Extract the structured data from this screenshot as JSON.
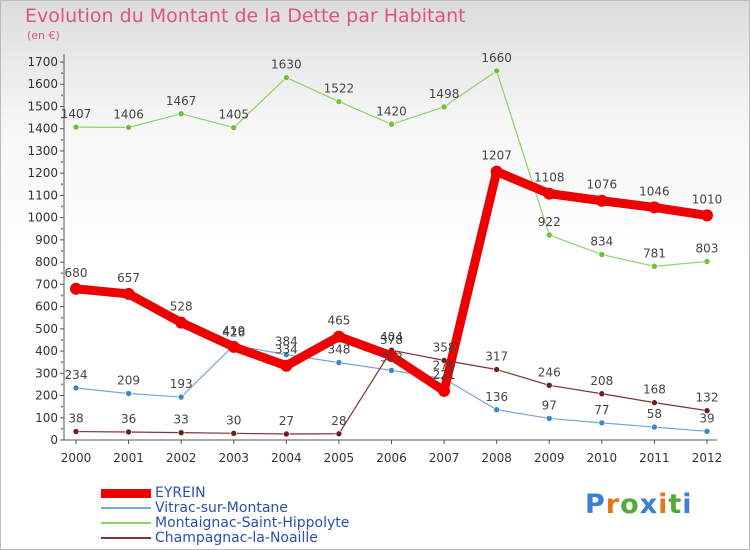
{
  "title": "Evolution du Montant de la Dette par Habitant",
  "subtitle": "(en €)",
  "logo": {
    "text": "Proxiti",
    "colors": [
      "#3a7fd5",
      "#e07a1f",
      "#56a83a",
      "#3a7fd5",
      "#e07a1f",
      "#56a83a",
      "#3a7fd5"
    ]
  },
  "chart_data": {
    "type": "line",
    "title": "Evolution du Montant de la Dette par Habitant",
    "subtitle": "(en €)",
    "x": [
      "2000",
      "2001",
      "2002",
      "2003",
      "2004",
      "2005",
      "2006",
      "2007",
      "2008",
      "2009",
      "2010",
      "2011",
      "2012"
    ],
    "ylim": [
      0,
      1700
    ],
    "yticks": [
      0,
      100,
      200,
      300,
      400,
      500,
      600,
      700,
      800,
      900,
      1000,
      1100,
      1200,
      1300,
      1400,
      1500,
      1600,
      1700
    ],
    "grid": false,
    "legend": "bottom-left",
    "series": [
      {
        "name": "EYREIN",
        "color": "#ee0000",
        "values": [
          680,
          657,
          528,
          419,
          334,
          465,
          378,
          221,
          1207,
          1108,
          1076,
          1046,
          1010
        ]
      },
      {
        "name": "Vitrac-sur-Montane",
        "color": "#7aa6d2",
        "values": [
          234,
          209,
          193,
          426,
          384,
          348,
          313,
          276,
          136,
          97,
          77,
          58,
          39
        ]
      },
      {
        "name": "Montaignac-Saint-Hippolyte",
        "color": "#8ed26c",
        "values": [
          1407,
          1406,
          1467,
          1405,
          1630,
          1522,
          1420,
          1498,
          1660,
          922,
          834,
          781,
          803
        ]
      },
      {
        "name": "Champagnac-la-Noaille",
        "color": "#7e3336",
        "values": [
          38,
          36,
          33,
          30,
          27,
          28,
          404,
          358,
          317,
          246,
          208,
          168,
          132
        ]
      }
    ]
  }
}
